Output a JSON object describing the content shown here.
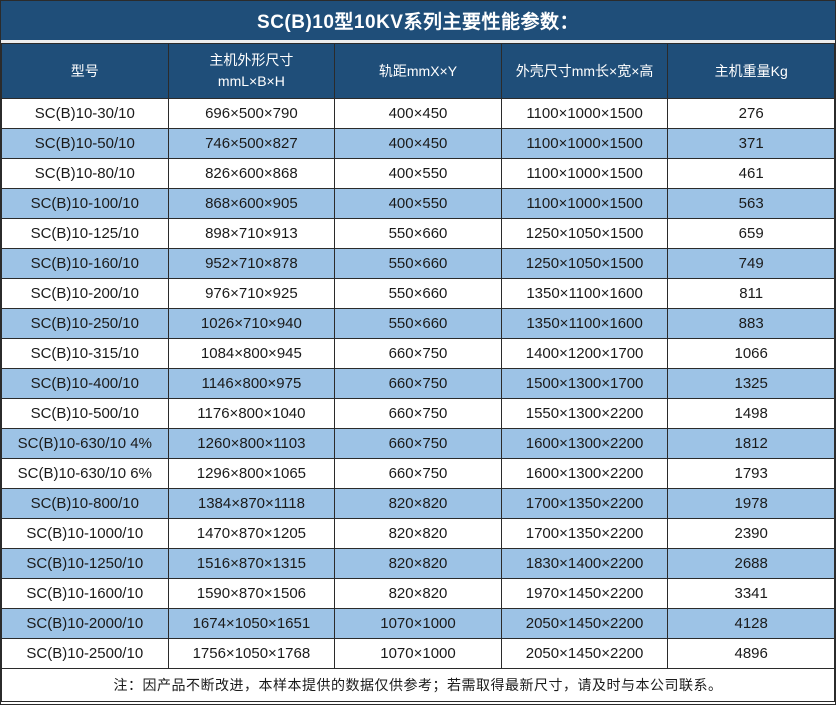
{
  "title": "SC(B)10型10KV系列主要性能参数：",
  "table": {
    "columns": [
      {
        "label": "型号"
      },
      {
        "label": "主机外形尺寸\nmmL×B×H"
      },
      {
        "label": "轨距mmX×Y"
      },
      {
        "label": "外壳尺寸mm长×宽×高"
      },
      {
        "label": "主机重量Kg"
      }
    ],
    "rows": [
      [
        "SC(B)10-30/10",
        "696×500×790",
        "400×450",
        "1100×1000×1500",
        "276"
      ],
      [
        "SC(B)10-50/10",
        "746×500×827",
        "400×450",
        "1100×1000×1500",
        "371"
      ],
      [
        "SC(B)10-80/10",
        "826×600×868",
        "400×550",
        "1100×1000×1500",
        "461"
      ],
      [
        "SC(B)10-100/10",
        "868×600×905",
        "400×550",
        "1100×1000×1500",
        "563"
      ],
      [
        "SC(B)10-125/10",
        "898×710×913",
        "550×660",
        "1250×1050×1500",
        "659"
      ],
      [
        "SC(B)10-160/10",
        "952×710×878",
        "550×660",
        "1250×1050×1500",
        "749"
      ],
      [
        "SC(B)10-200/10",
        "976×710×925",
        "550×660",
        "1350×1100×1600",
        "811"
      ],
      [
        "SC(B)10-250/10",
        "1026×710×940",
        "550×660",
        "1350×1100×1600",
        "883"
      ],
      [
        "SC(B)10-315/10",
        "1084×800×945",
        "660×750",
        "1400×1200×1700",
        "1066"
      ],
      [
        "SC(B)10-400/10",
        "1146×800×975",
        "660×750",
        "1500×1300×1700",
        "1325"
      ],
      [
        "SC(B)10-500/10",
        "1176×800×1040",
        "660×750",
        "1550×1300×2200",
        "1498"
      ],
      [
        "SC(B)10-630/10 4%",
        "1260×800×1103",
        "660×750",
        "1600×1300×2200",
        "1812"
      ],
      [
        "SC(B)10-630/10 6%",
        "1296×800×1065",
        "660×750",
        "1600×1300×2200",
        "1793"
      ],
      [
        "SC(B)10-800/10",
        "1384×870×1118",
        "820×820",
        "1700×1350×2200",
        "1978"
      ],
      [
        "SC(B)10-1000/10",
        "1470×870×1205",
        "820×820",
        "1700×1350×2200",
        "2390"
      ],
      [
        "SC(B)10-1250/10",
        "1516×870×1315",
        "820×820",
        "1830×1400×2200",
        "2688"
      ],
      [
        "SC(B)10-1600/10",
        "1590×870×1506",
        "820×820",
        "1970×1450×2200",
        "3341"
      ],
      [
        "SC(B)10-2000/10",
        "1674×1050×1651",
        "1070×1000",
        "2050×1450×2200",
        "4128"
      ],
      [
        "SC(B)10-2500/10",
        "1756×1050×1768",
        "1070×1000",
        "2050×1450×2200",
        "4896"
      ]
    ],
    "note": "注：因产品不断改进，本样本提供的数据仅供参考；若需取得最新尺寸，请及时与本公司联系。"
  },
  "colors": {
    "header_bg": "#1F4E79",
    "header_text": "#FFFFFF",
    "row_bg": "#FFFFFF",
    "row_alt_bg": "#9DC3E6",
    "border": "#2B2B2B",
    "text": "#1A1A1A",
    "title_divider": "#EDEDED"
  }
}
